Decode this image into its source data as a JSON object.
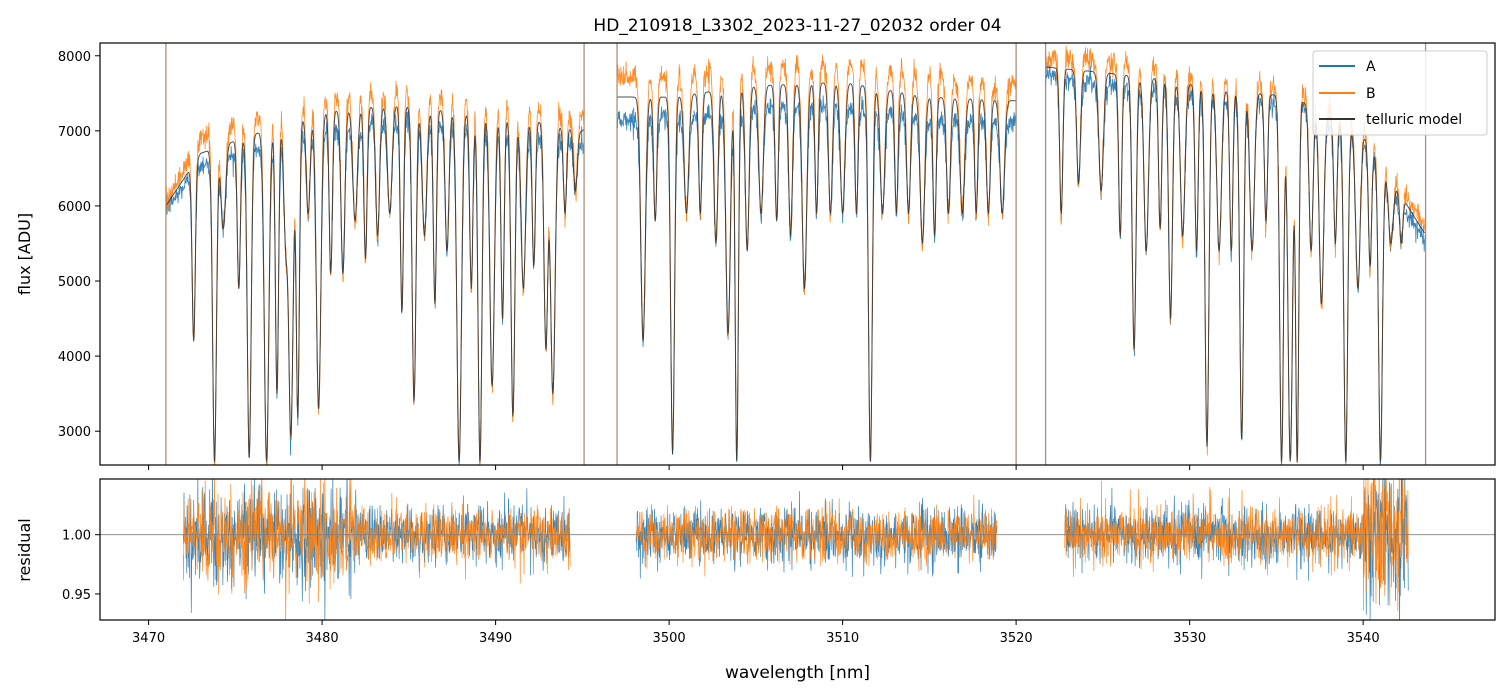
{
  "figure": {
    "title": "HD_210918_L3302_2023-11-27_02032  order 04",
    "xlabel": "wavelength [nm]"
  },
  "colors": {
    "series_a": "#1f77b4",
    "series_b": "#ff7f0e",
    "model": "#333333",
    "axis": "#000000",
    "refline": "#808080"
  },
  "chart_data": [
    {
      "type": "line",
      "panel": "flux",
      "title": "HD_210918_L3302_2023-11-27_02032  order 04",
      "ylabel": "flux [ADU]",
      "xlim": [
        3467.2,
        3547.6
      ],
      "ylim": [
        2550,
        8170
      ],
      "xticks": [
        3470,
        3480,
        3490,
        3500,
        3510,
        3520,
        3530,
        3540
      ],
      "yticks": [
        3000,
        4000,
        5000,
        6000,
        7000,
        8000
      ],
      "legend_position": "top-right",
      "legend": [
        "A",
        "B",
        "telluric model"
      ],
      "segments_nm": [
        [
          3471.0,
          3495.1
        ],
        [
          3497.0,
          3520.0
        ],
        [
          3521.7,
          3543.6
        ]
      ],
      "series": [
        {
          "name": "A",
          "continuum_nm": [
            3471.0,
            3473.0,
            3476.0,
            3480.0,
            3484.0,
            3488.0,
            3492.0,
            3495.0,
            3497.0,
            3500.0,
            3505.0,
            3510.0,
            3515.0,
            3520.0,
            3521.7,
            3524.0,
            3528.0,
            3532.0,
            3536.0,
            3540.0,
            3543.5
          ],
          "continuum_flux": [
            5950,
            6550,
            6750,
            7000,
            7150,
            7050,
            6950,
            6850,
            7150,
            7150,
            7300,
            7350,
            7150,
            7150,
            7750,
            7650,
            7550,
            7450,
            7350,
            6850,
            5550
          ]
        },
        {
          "name": "B",
          "continuum_nm": [
            3471.0,
            3473.0,
            3476.0,
            3480.0,
            3484.0,
            3488.0,
            3492.0,
            3495.0,
            3497.0,
            3500.0,
            3505.0,
            3510.0,
            3515.0,
            3520.0,
            3521.7,
            3524.0,
            3528.0,
            3532.0,
            3536.0,
            3540.0,
            3543.5
          ],
          "continuum_flux": [
            6050,
            6900,
            7150,
            7450,
            7550,
            7450,
            7350,
            7200,
            7700,
            7700,
            7850,
            7900,
            7750,
            7600,
            7950,
            7950,
            7850,
            7650,
            7550,
            7050,
            5750
          ]
        },
        {
          "name": "telluric model",
          "continuum_nm": [
            3471.0,
            3473.0,
            3476.0,
            3480.0,
            3484.0,
            3488.0,
            3492.0,
            3495.0,
            3497.0,
            3500.0,
            3505.0,
            3510.0,
            3515.0,
            3520.0,
            3521.7,
            3524.0,
            3528.0,
            3532.0,
            3536.0,
            3540.0,
            3543.5
          ],
          "continuum_flux": [
            6000,
            6700,
            6950,
            7250,
            7350,
            7250,
            7150,
            7000,
            7450,
            7450,
            7600,
            7650,
            7450,
            7400,
            7850,
            7800,
            7700,
            7550,
            7450,
            6950,
            5650
          ]
        }
      ],
      "absorption_lines_nm": [
        3472.6,
        3473.8,
        3474.3,
        3475.2,
        3475.8,
        3476.8,
        3477.4,
        3477.9,
        3478.2,
        3478.6,
        3479.2,
        3479.8,
        3480.5,
        3481.2,
        3481.9,
        3482.5,
        3483.2,
        3483.9,
        3484.6,
        3485.3,
        3485.9,
        3486.5,
        3487.2,
        3487.9,
        3488.6,
        3489.1,
        3489.8,
        3490.4,
        3491.0,
        3491.6,
        3492.2,
        3492.9,
        3493.3,
        3494.0,
        3494.6,
        3498.5,
        3499.2,
        3500.2,
        3501.0,
        3501.8,
        3502.7,
        3503.4,
        3503.9,
        3504.5,
        3505.3,
        3506.2,
        3507.0,
        3507.8,
        3508.5,
        3509.3,
        3510.0,
        3510.8,
        3511.6,
        3512.3,
        3513.1,
        3513.8,
        3514.6,
        3515.3,
        3516.1,
        3516.9,
        3517.7,
        3518.4,
        3519.2,
        3522.6,
        3523.6,
        3524.9,
        3526.0,
        3526.8,
        3527.5,
        3528.3,
        3528.9,
        3529.6,
        3530.4,
        3531.0,
        3531.7,
        3532.4,
        3533.0,
        3533.6,
        3534.4,
        3535.3,
        3535.8,
        3536.2,
        3537.0,
        3537.6,
        3538.4,
        3539.0,
        3539.7,
        3540.4,
        3541.0,
        3541.6,
        3542.2
      ],
      "absorption_min_flux": [
        4200,
        2600,
        5700,
        4900,
        2650,
        2600,
        3500,
        5600,
        2950,
        3200,
        5900,
        3300,
        5100,
        5100,
        5800,
        5300,
        5600,
        5900,
        4600,
        3400,
        5600,
        4700,
        5400,
        2600,
        4900,
        2600,
        3600,
        4500,
        3200,
        4900,
        5200,
        4100,
        3500,
        5900,
        6200,
        4200,
        5800,
        2700,
        5900,
        5900,
        5500,
        4300,
        2600,
        5400,
        5900,
        5800,
        5600,
        4900,
        5900,
        5900,
        5900,
        5900,
        2600,
        5900,
        5900,
        5900,
        5500,
        5600,
        5900,
        5900,
        5900,
        5900,
        5900,
        5900,
        6300,
        6200,
        5600,
        4100,
        5400,
        5700,
        4500,
        5600,
        5400,
        2800,
        5400,
        5400,
        2900,
        5400,
        5800,
        2600,
        2600,
        2600,
        5400,
        4700,
        5500,
        2600,
        4900,
        5200,
        2600,
        5500,
        5500
      ]
    },
    {
      "type": "line",
      "panel": "residual",
      "ylabel": "residual",
      "xlabel": "wavelength [nm]",
      "xlim": [
        3467.2,
        3547.6
      ],
      "ylim": [
        0.928,
        1.047
      ],
      "xticks": [
        3470,
        3480,
        3490,
        3500,
        3510,
        3520,
        3530,
        3540
      ],
      "yticks": [
        0.95,
        1.0
      ],
      "reference_line": 1.0,
      "segments_nm": [
        [
          3472.0,
          3494.3
        ],
        [
          3498.1,
          3518.9
        ],
        [
          3522.8,
          3542.6
        ]
      ],
      "series": [
        {
          "name": "A",
          "center": 1.0,
          "noise_sigma": 0.02
        },
        {
          "name": "B",
          "center": 1.0,
          "noise_sigma": 0.02
        }
      ]
    }
  ]
}
